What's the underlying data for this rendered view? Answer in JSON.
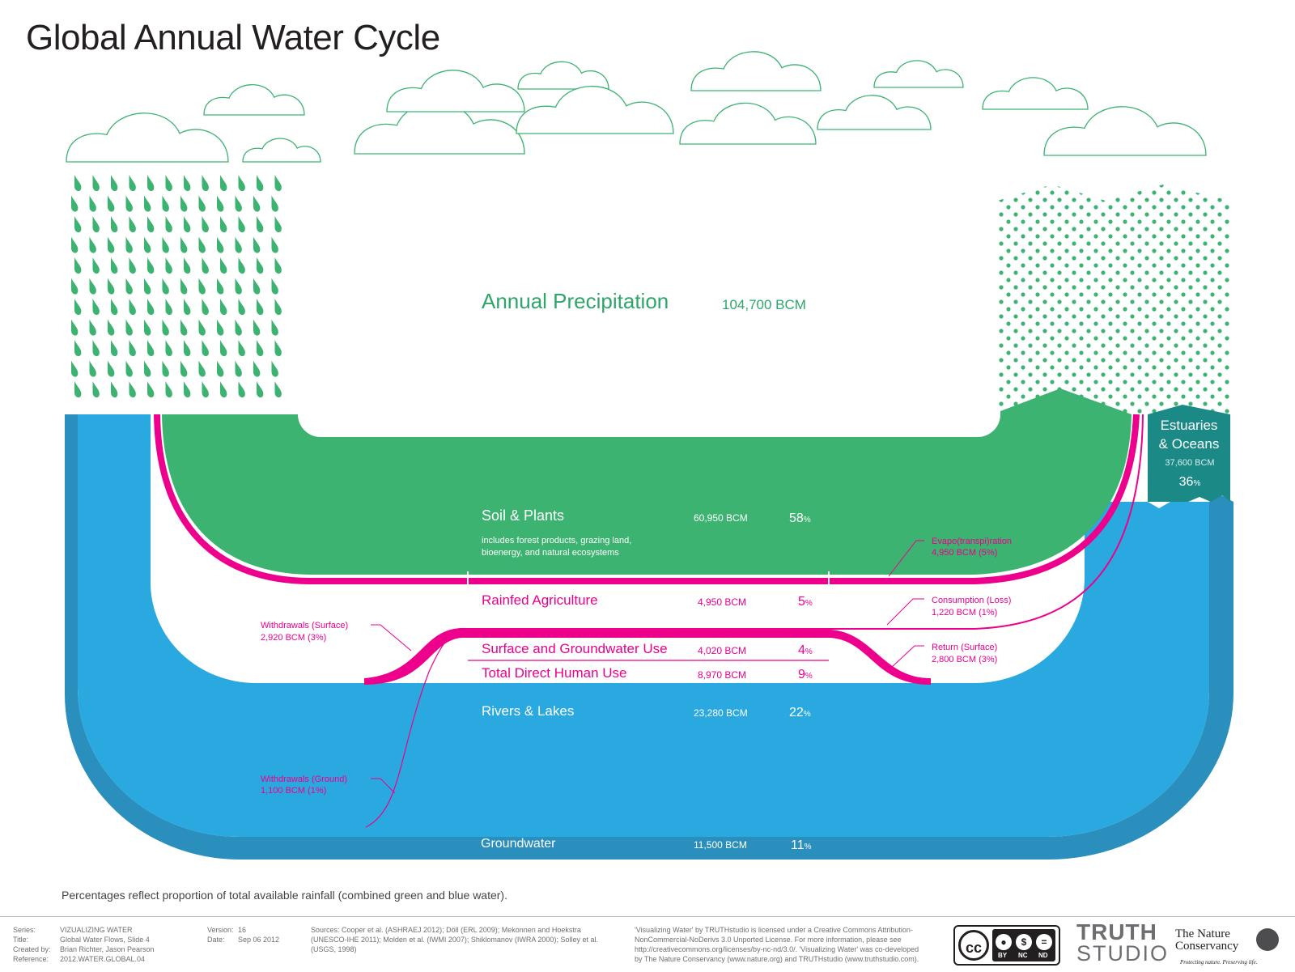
{
  "title": "Global Annual Water Cycle",
  "colors": {
    "green": "#3cb371",
    "green_text": "#2ea56a",
    "light_blue": "#29a9e0",
    "dark_blue": "#2a8fbd",
    "teal": "#1b8a87",
    "magenta": "#ec008c"
  },
  "precipitation": {
    "label": "Annual Precipitation",
    "value": "104,700 BCM"
  },
  "estuaries": {
    "label_line1": "Estuaries",
    "label_line2": "& Oceans",
    "value": "37,600 BCM",
    "pct": "36",
    "pct_unit": "%"
  },
  "flows": {
    "soil_plants": {
      "label": "Soil & Plants",
      "value": "60,950 BCM",
      "pct": "58",
      "unit": "%",
      "sub1": "includes forest products, grazing land,",
      "sub2": "bioenergy, and natural ecosystems"
    },
    "rainfed": {
      "label": "Rainfed Agriculture",
      "value": "4,950 BCM",
      "pct": "5",
      "unit": "%"
    },
    "surface_ground_use": {
      "label": "Surface and Groundwater Use",
      "value": "4,020 BCM",
      "pct": "4",
      "unit": "%"
    },
    "total_direct": {
      "label": "Total Direct Human Use",
      "value": "8,970 BCM",
      "pct": "9",
      "unit": "%"
    },
    "rivers_lakes": {
      "label": "Rivers & Lakes",
      "value": "23,280 BCM",
      "pct": "22",
      "unit": "%"
    },
    "groundwater": {
      "label": "Groundwater",
      "value": "11,500 BCM",
      "pct": "11",
      "unit": "%"
    }
  },
  "annotations": {
    "evapo": {
      "line1": "Evapo(transpi)ration",
      "line2": "4,950 BCM (5%)"
    },
    "consumption": {
      "line1": "Consumption (Loss)",
      "line2": "1,220 BCM (1%)"
    },
    "return_surface": {
      "line1": "Return (Surface)",
      "line2": "2,800 BCM (3%)"
    },
    "withdrawals_surface": {
      "line1": "Withdrawals (Surface)",
      "line2": "2,920 BCM (3%)"
    },
    "withdrawals_ground": {
      "line1": "Withdrawals (Ground)",
      "line2": "1,100 BCM (1%)"
    }
  },
  "note": "Percentages reflect proportion of total available rainfall (combined green and blue water).",
  "footer": {
    "series_label": "Series:",
    "series": "VIZUALIZING WATER",
    "title_label": "Title:",
    "title": "Global Water Flows, Slide 4",
    "created_label": "Created by:",
    "created": "Brian Richter, Jason Pearson",
    "reference_label": "Reference:",
    "reference": "2012.WATER.GLOBAL.04",
    "version_label": "Version:",
    "version": "16",
    "date_label": "Date:",
    "date": "Sep 06 2012",
    "sources_1": "Sources: Cooper et al. (ASHRAEJ 2012); Döll (ERL 2009); Mekonnen and Hoekstra",
    "sources_2": "(UNESCO-IHE 2011); Molden et al. (IWMI 2007); Shiklomanov (IWRA 2000); Solley et al.",
    "sources_3": "(USGS, 1998)",
    "license_1": "'Visualizing Water' by TRUTHstudio is licensed under a Creative Commons Attribution-",
    "license_2": "NonCommercial-NoDerivs 3.0 Unported License.  For more information, please see",
    "license_3": "http://creativecommons.org/licenses/by-nc-nd/3.0/.  'Visualizing Water' was co-developed",
    "license_4": "by The Nature Conservancy (www.nature.org) and TRUTHstudio (www.truthstudio.com).",
    "cc_main": "cc",
    "cc_by": "BY",
    "cc_nc": "NC",
    "cc_nd": "ND",
    "truth_1": "TRUTH",
    "truth_2": "STUDIO",
    "tnc_1": "The Nature",
    "tnc_2": "Conservancy",
    "tnc_tag": "Protecting nature. Preserving life."
  }
}
